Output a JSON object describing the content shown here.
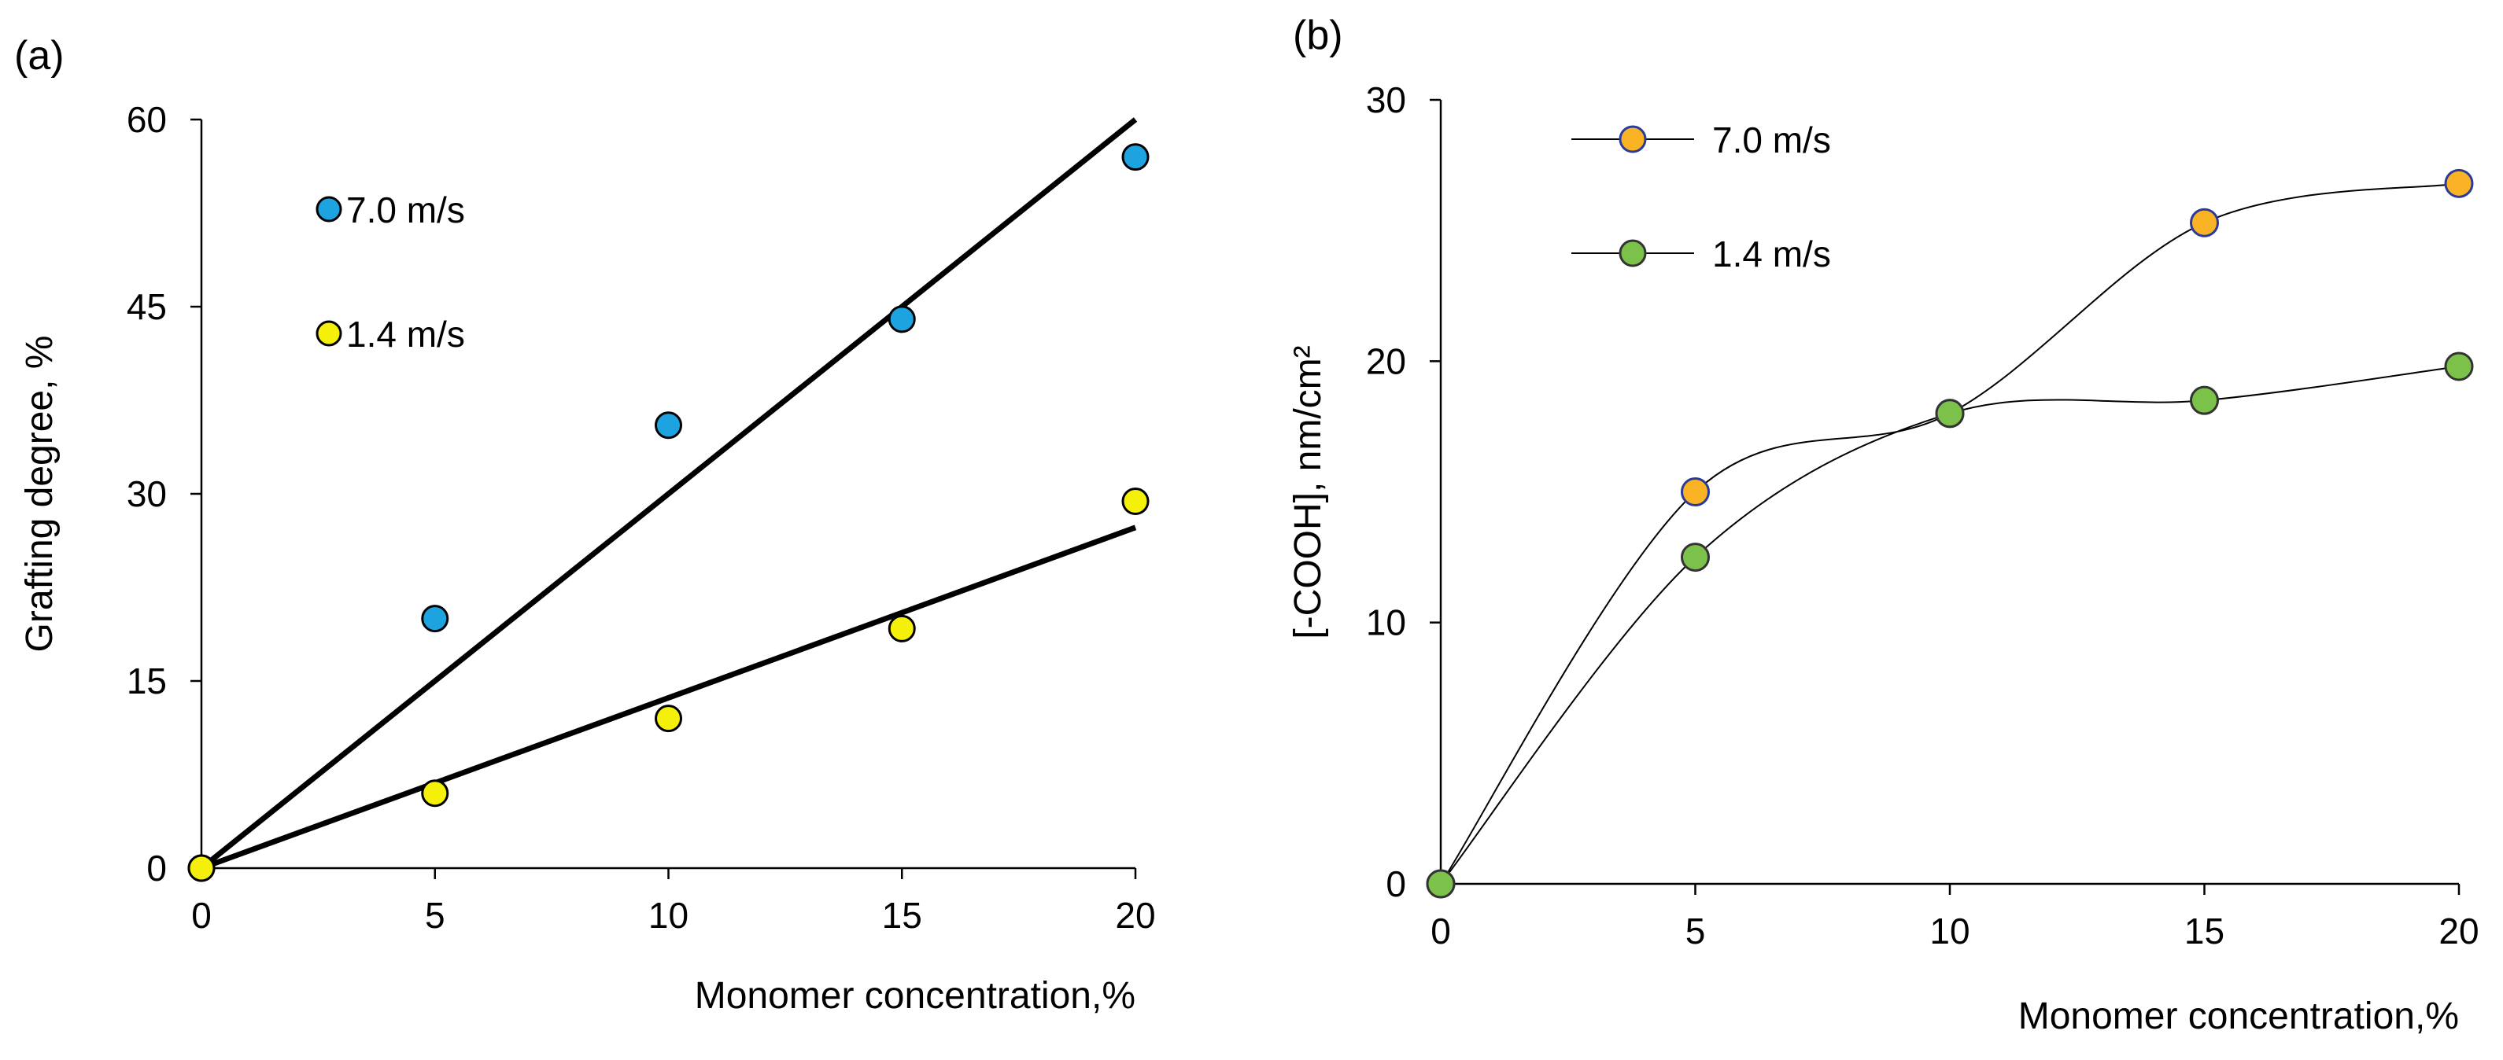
{
  "chart_data": [
    {
      "type": "scatter",
      "panel_label": "(a)",
      "xlabel": "Monomer concentration,%",
      "ylabel": "Grafting degree, %",
      "xlim": [
        0,
        20
      ],
      "ylim": [
        0,
        60
      ],
      "xticks": [
        0,
        5,
        10,
        15,
        20
      ],
      "yticks": [
        0,
        15,
        30,
        45,
        60
      ],
      "series": [
        {
          "name": "7.0 m/s",
          "color": "#1ea3e1",
          "x": [
            0,
            5,
            10,
            15,
            20
          ],
          "y": [
            0,
            20,
            35.5,
            44,
            57
          ],
          "fit_line": {
            "x": [
              0,
              20
            ],
            "y": [
              0,
              60
            ]
          }
        },
        {
          "name": "1.4 m/s",
          "color": "#f5f00a",
          "x": [
            0,
            5,
            10,
            15,
            20
          ],
          "y": [
            0,
            6,
            12,
            19.2,
            29.4
          ],
          "fit_line": {
            "x": [
              0,
              20
            ],
            "y": [
              0,
              27.3
            ]
          }
        }
      ]
    },
    {
      "type": "line",
      "panel_label": "(b)",
      "xlabel": "Monomer concentration,%",
      "ylabel": "[-COOH], nm/cm²",
      "xlim": [
        0,
        20
      ],
      "ylim": [
        0,
        30
      ],
      "xticks": [
        0,
        5,
        10,
        15,
        20
      ],
      "yticks": [
        0,
        10,
        20,
        30
      ],
      "series": [
        {
          "name": "7.0 m/s",
          "color": "#f9b324",
          "edge": "#2a3a9a",
          "x": [
            0,
            5,
            10,
            15,
            20
          ],
          "y": [
            0,
            15,
            18,
            25.3,
            26.8
          ]
        },
        {
          "name": "1.4 m/s",
          "color": "#7cc24a",
          "edge": "#333333",
          "x": [
            0,
            5,
            10,
            15,
            20
          ],
          "y": [
            0,
            12.5,
            18,
            18.5,
            19.8
          ]
        }
      ]
    }
  ]
}
